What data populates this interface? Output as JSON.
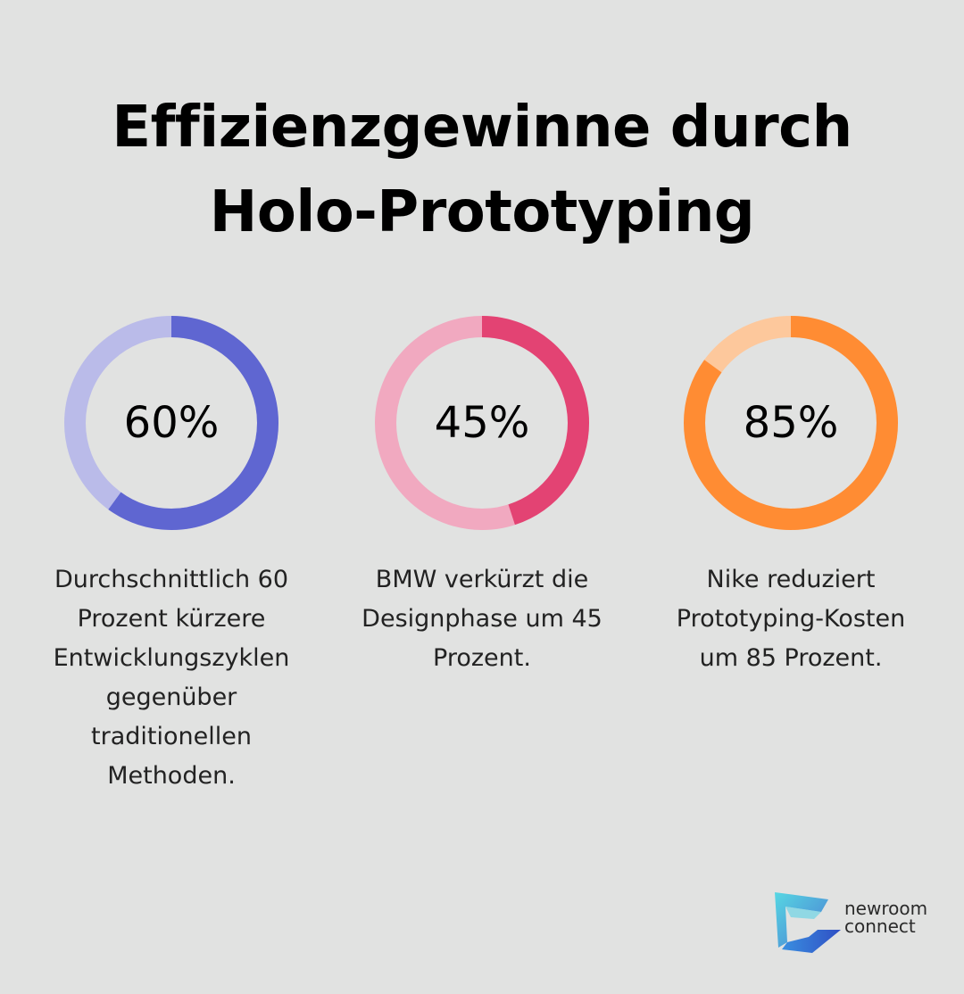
{
  "title": {
    "line1": "Effizienzgewinne durch",
    "line2": "Holo-Prototyping"
  },
  "chart_data": {
    "type": "pie",
    "variant": "donut",
    "items": [
      {
        "value": 60,
        "label": "60%",
        "description": "Durchschnittlich 60 Prozent kürzere Entwicklungszyklen gegenüber traditionellen Methoden.",
        "color": "#5f66d1",
        "track_color": "#babbe9"
      },
      {
        "value": 45,
        "label": "45%",
        "description": "BMW verkürzt die Designphase um 45 Prozent.",
        "color": "#e34373",
        "track_color": "#f1a9c0"
      },
      {
        "value": 85,
        "label": "85%",
        "description": "Nike reduziert Prototyping-Kosten um 85 Prozent.",
        "color": "#ff8c33",
        "track_color": "#fdc89c"
      }
    ]
  },
  "logo": {
    "line1": "newroom",
    "line2": "connect",
    "icon": "newroom-connect-logo-icon"
  }
}
